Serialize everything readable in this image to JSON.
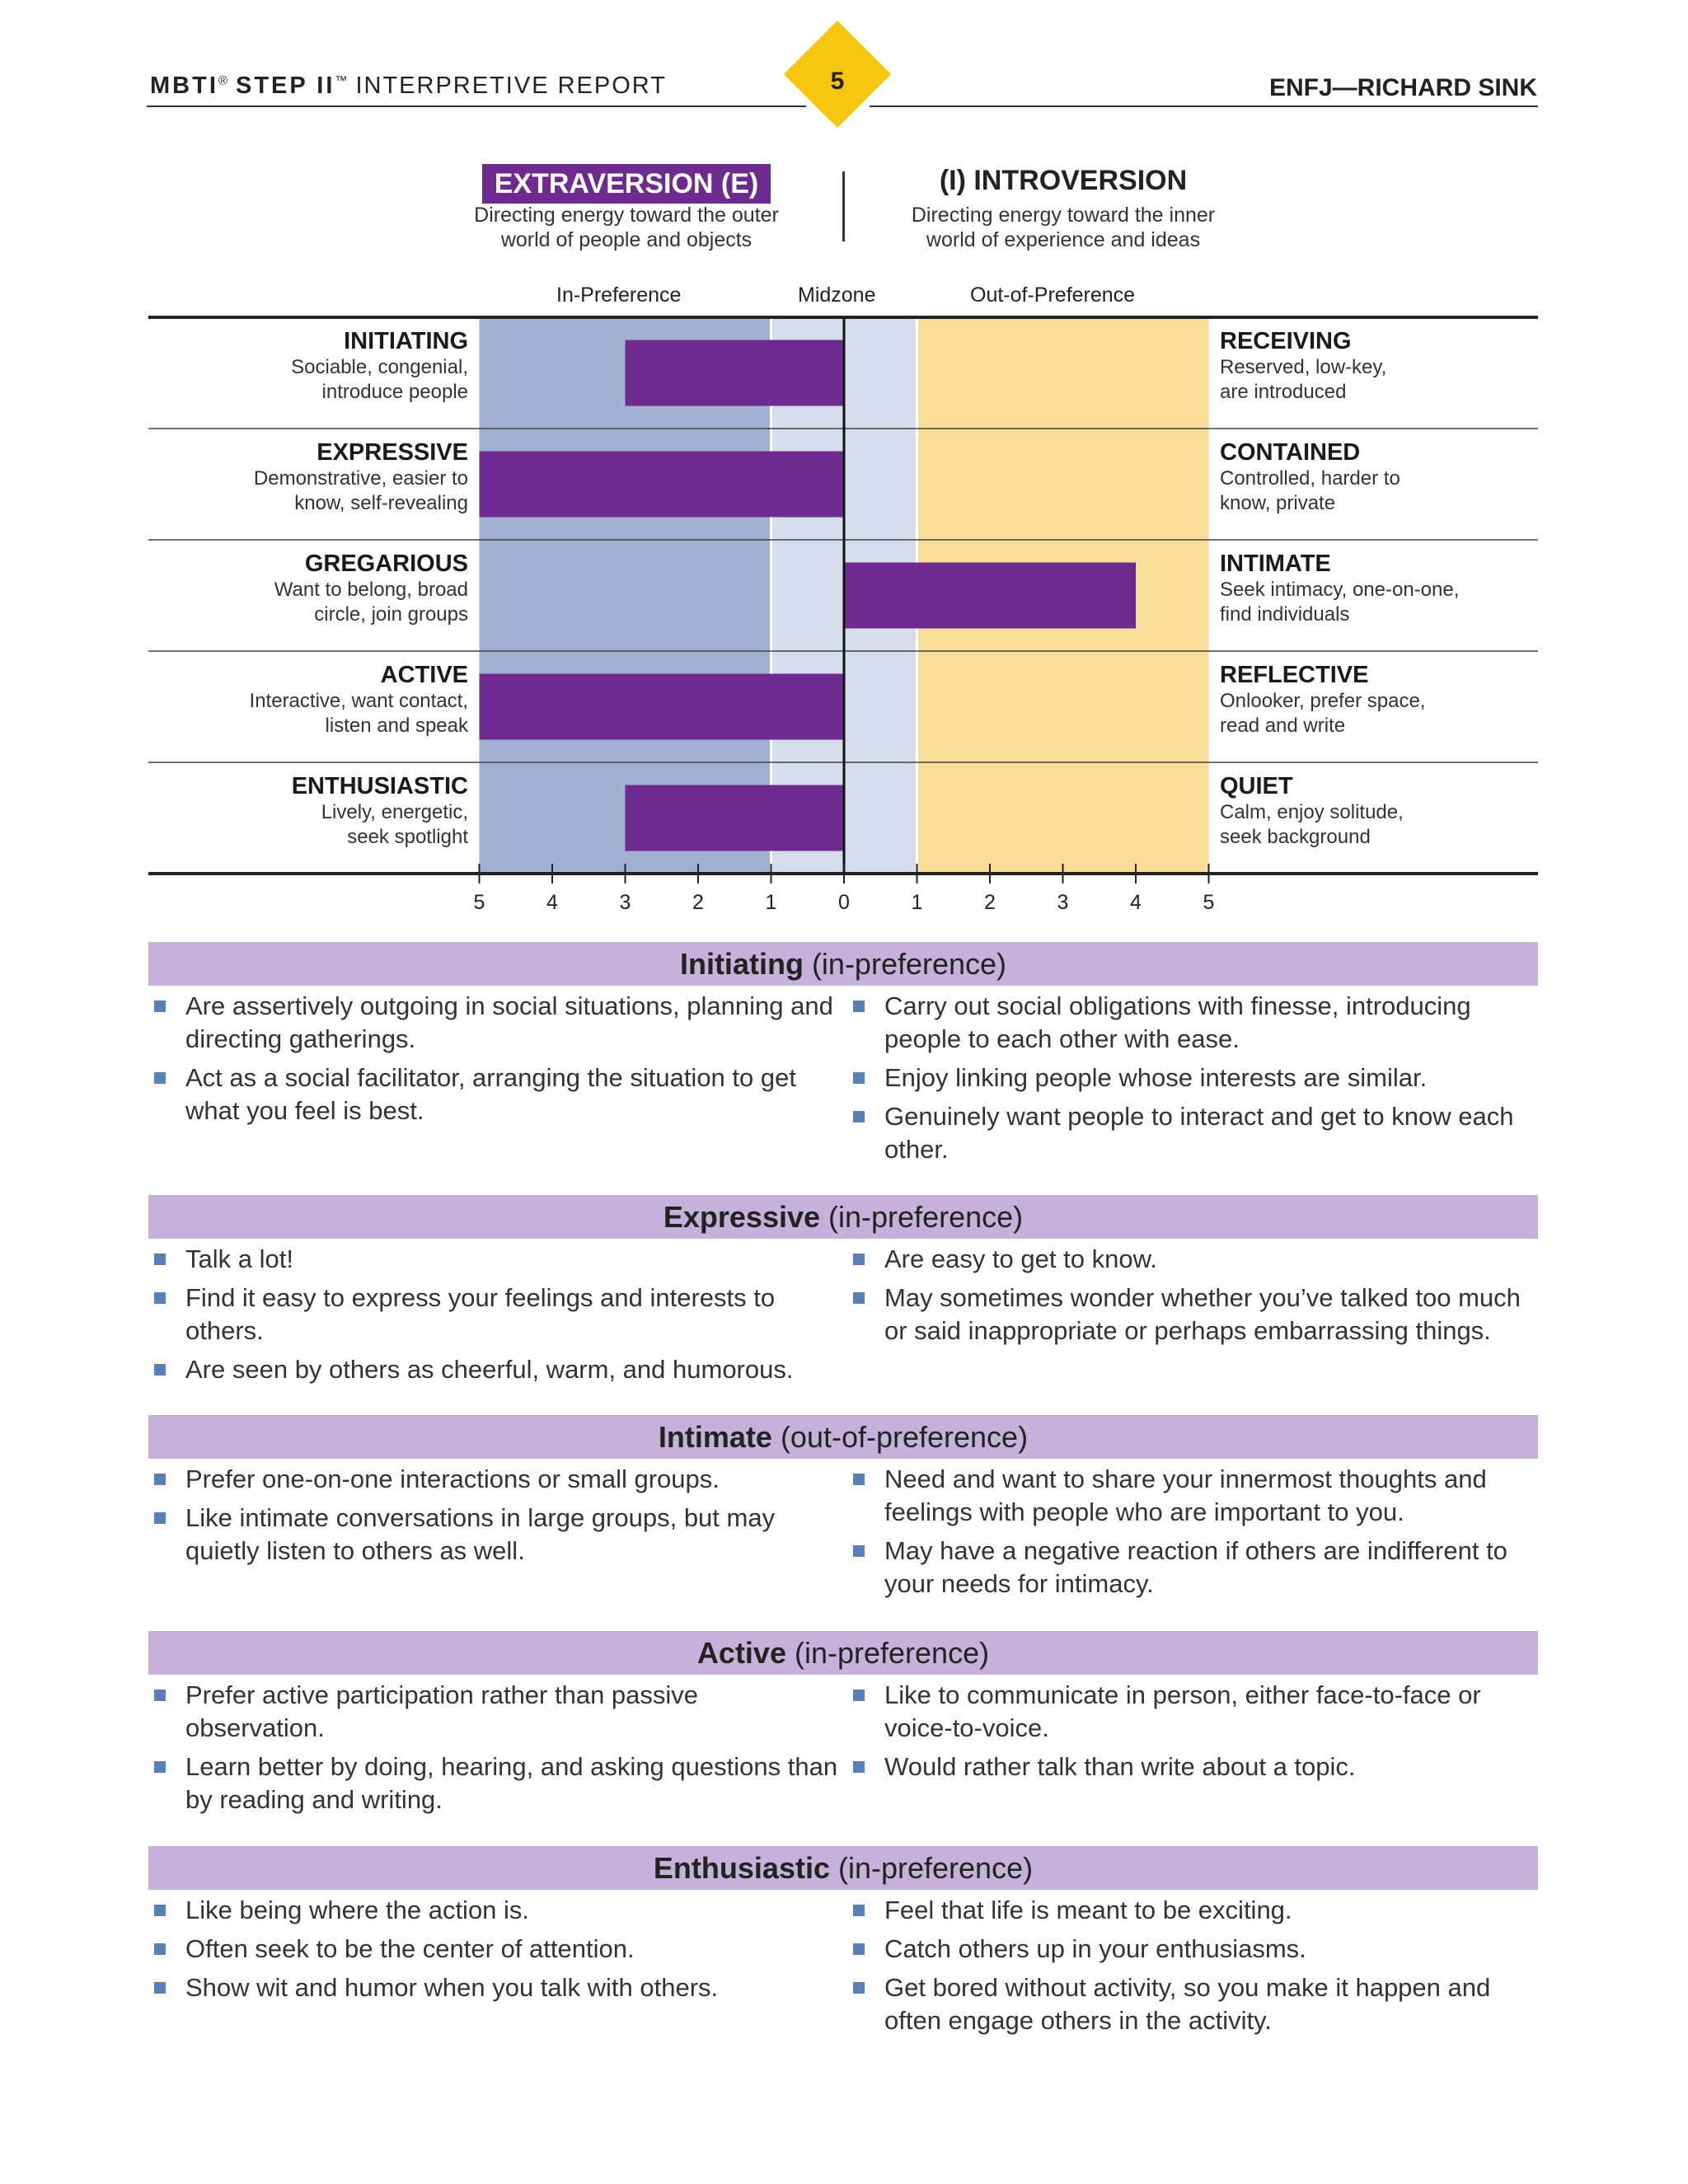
{
  "header": {
    "brand_bold": "MBTI",
    "brand_reg_mark": "®",
    "brand_step": "STEP II",
    "brand_tm": "™",
    "brand_light": "INTERPRETIVE REPORT",
    "page_number": "5",
    "right": "ENFJ—RICHARD SINK"
  },
  "poles": {
    "left_title": "EXTRAVERSION (E)",
    "left_sub_1": "Directing energy toward the outer",
    "left_sub_2": "world of people and objects",
    "right_title": "(I) INTROVERSION",
    "right_sub_1": "Directing energy toward the inner",
    "right_sub_2": "world of experience and ideas"
  },
  "zones": {
    "in": "In-Preference",
    "mid": "Midzone",
    "out": "Out-of-Preference"
  },
  "colors": {
    "purple": "#6f2a8f",
    "in_zone": "#a1b0d2",
    "mid_zone": "#d6dcec",
    "out_zone": "#f9dd98",
    "header_bar": "#c5b1d9",
    "diamond": "#f7c40f"
  },
  "chart_data": {
    "type": "bar",
    "orientation": "horizontal",
    "categories": [
      "INITIATING–RECEIVING",
      "EXPRESSIVE–CONTAINED",
      "GREGARIOUS–INTIMATE",
      "ACTIVE–REFLECTIVE",
      "ENTHUSIASTIC–QUIET"
    ],
    "values": [
      -3,
      -5,
      4,
      -5,
      -3
    ],
    "xlim": [
      -5,
      5
    ],
    "tick_labels": [
      "5",
      "4",
      "3",
      "2",
      "1",
      "0",
      "1",
      "2",
      "3",
      "4",
      "5"
    ],
    "rows": [
      {
        "left_name": "INITIATING",
        "left_d1": "Sociable, congenial,",
        "left_d2": "introduce people",
        "right_name": "RECEIVING",
        "right_d1": "Reserved, low-key,",
        "right_d2": "are introduced"
      },
      {
        "left_name": "EXPRESSIVE",
        "left_d1": "Demonstrative, easier to",
        "left_d2": "know, self-revealing",
        "right_name": "CONTAINED",
        "right_d1": "Controlled, harder to",
        "right_d2": "know, private"
      },
      {
        "left_name": "GREGARIOUS",
        "left_d1": "Want to belong, broad",
        "left_d2": "circle, join groups",
        "right_name": "INTIMATE",
        "right_d1": "Seek intimacy, one-on-one,",
        "right_d2": "find individuals"
      },
      {
        "left_name": "ACTIVE",
        "left_d1": "Interactive, want contact,",
        "left_d2": "listen and speak",
        "right_name": "REFLECTIVE",
        "right_d1": "Onlooker, prefer space,",
        "right_d2": "read and write"
      },
      {
        "left_name": "ENTHUSIASTIC",
        "left_d1": "Lively, energetic,",
        "left_d2": "seek spotlight",
        "right_name": "QUIET",
        "right_d1": "Calm, enjoy solitude,",
        "right_d2": "seek background"
      }
    ]
  },
  "sections": [
    {
      "title": "Initiating",
      "qualifier": "(in-preference)",
      "left": [
        "Are assertively outgoing in social situations, planning and directing gatherings.",
        "Act as a social facilitator, arranging the situation to get what you feel is best."
      ],
      "right": [
        "Carry out social obligations with finesse, introducing people to each other with ease.",
        "Enjoy linking people whose interests are similar.",
        "Genuinely want people to interact and get to know each other."
      ]
    },
    {
      "title": "Expressive",
      "qualifier": "(in-preference)",
      "left": [
        "Talk a lot!",
        "Find it easy to express your feelings and interests to others.",
        "Are seen by others as cheerful, warm, and humorous."
      ],
      "right": [
        "Are easy to get to know.",
        "May sometimes wonder whether you’ve talked too much or said inappropriate or perhaps embarrassing things."
      ]
    },
    {
      "title": "Intimate",
      "qualifier": "(out-of-preference)",
      "left": [
        "Prefer one-on-one interactions or small groups.",
        "Like intimate conversations in large groups, but may quietly listen to others as well."
      ],
      "right": [
        "Need and want to share your innermost thoughts and feelings with people who are important to you.",
        "May have a negative reaction if others are indifferent to your needs for intimacy."
      ]
    },
    {
      "title": "Active",
      "qualifier": "(in-preference)",
      "left": [
        "Prefer active participation rather than passive observation.",
        "Learn better by doing, hearing, and asking questions than by reading and writing."
      ],
      "right": [
        "Like to communicate in person, either face-to-face or voice-to-voice.",
        "Would rather talk than write about a topic."
      ]
    },
    {
      "title": "Enthusiastic",
      "qualifier": "(in-preference)",
      "left": [
        "Like being where the action is.",
        "Often seek to be the center of attention.",
        "Show wit and humor when you talk with others."
      ],
      "right": [
        "Feel that life is meant to be exciting.",
        "Catch others up in your enthusiasms.",
        "Get bored without activity, so you make it happen and often engage others in the activity."
      ]
    }
  ]
}
